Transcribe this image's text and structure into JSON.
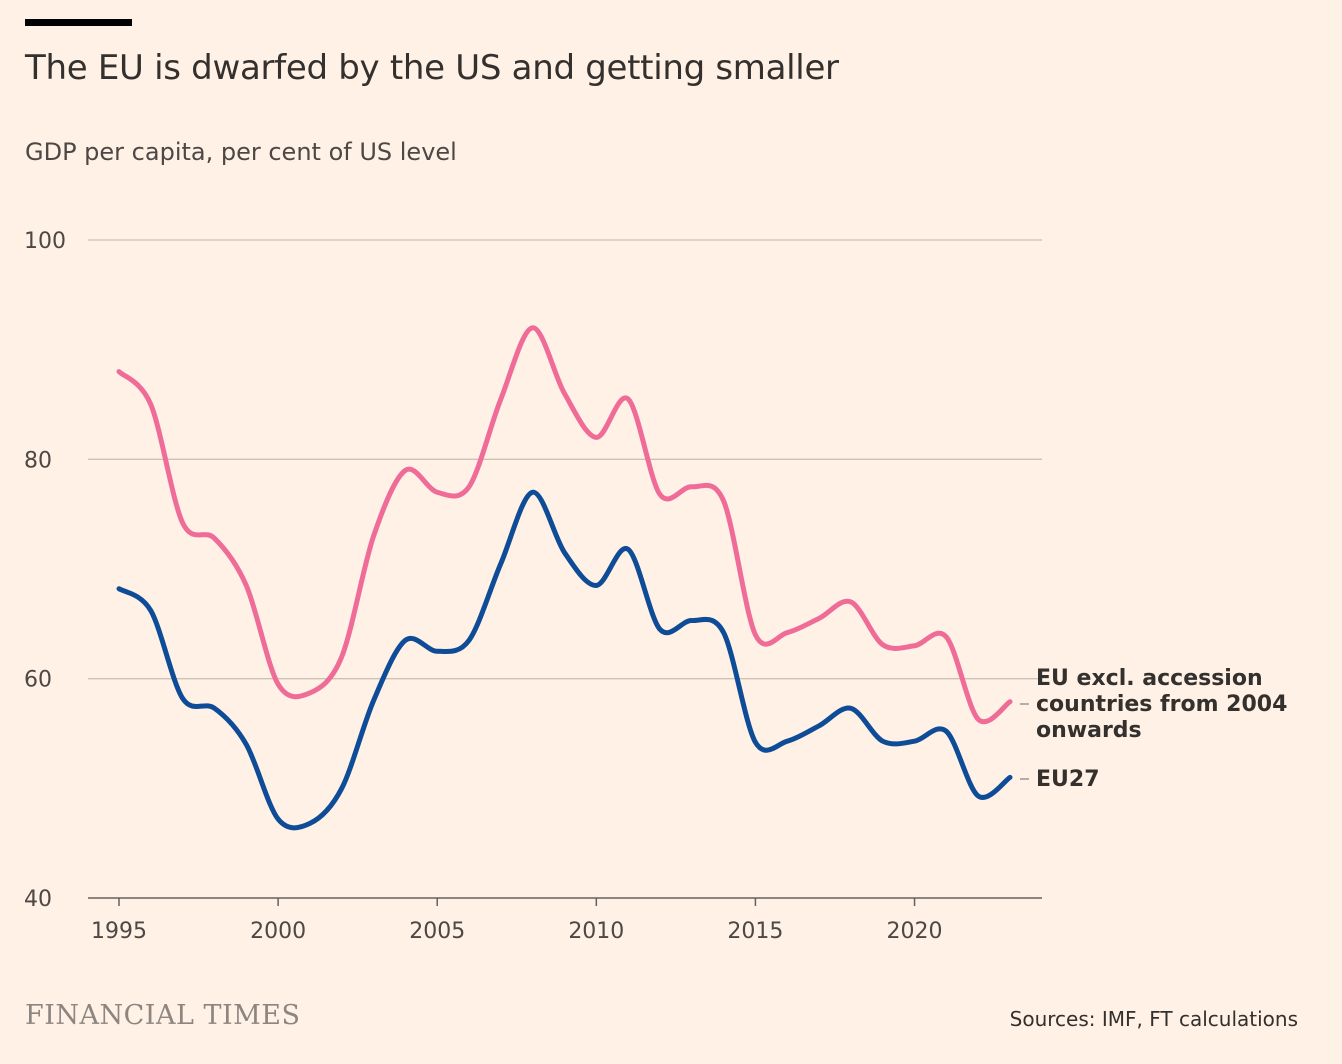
{
  "header": {
    "title": "The EU is dwarfed by the US and getting smaller",
    "subtitle": "GDP per capita, per cent of US level"
  },
  "footer": {
    "logo": "FINANCIAL TIMES",
    "source": "Sources: IMF, FT calculations"
  },
  "colors": {
    "background": "#fff1e5",
    "eu_excl": "#ef6c98",
    "eu27": "#0f4c97",
    "grid": "#ccc1b7"
  },
  "chart_data": {
    "type": "line",
    "x": [
      1995,
      1996,
      1997,
      1998,
      1999,
      2000,
      2001,
      2002,
      2003,
      2004,
      2005,
      2006,
      2007,
      2008,
      2009,
      2010,
      2011,
      2012,
      2013,
      2014,
      2015,
      2016,
      2017,
      2018,
      2019,
      2020,
      2021,
      2022,
      2023
    ],
    "series": [
      {
        "name": "EU excl. accession countries from 2004 onwards",
        "label_lines": [
          "EU excl. accession",
          "countries from 2004",
          "onwards"
        ],
        "values": [
          88,
          85,
          74.2,
          72.8,
          68.5,
          59.5,
          58.7,
          62,
          73,
          79,
          77,
          77.5,
          85.5,
          92,
          86,
          82,
          85.5,
          76.8,
          77.5,
          76.2,
          64,
          64.2,
          65.5,
          67,
          63.1,
          63,
          63.8,
          56.3,
          57.9
        ]
      },
      {
        "name": "EU27",
        "label_lines": [
          "EU27"
        ],
        "values": [
          68.2,
          66.2,
          58.2,
          57.3,
          54,
          47.2,
          46.8,
          50,
          58,
          63.5,
          62.5,
          63.5,
          70.5,
          77,
          71.5,
          68.5,
          71.8,
          64.5,
          65.3,
          64.2,
          54.2,
          54.3,
          55.7,
          57.3,
          54.3,
          54.3,
          55.2,
          49.3,
          51
        ]
      }
    ],
    "xticks": [
      "1995",
      "2000",
      "2005",
      "2010",
      "2015",
      "2020"
    ],
    "yticks": [
      "100",
      "80",
      "60",
      "40"
    ],
    "ylim": [
      40,
      100
    ],
    "xlim": [
      1995,
      2023
    ],
    "grid": true,
    "legend": "direct labels at line ends"
  }
}
